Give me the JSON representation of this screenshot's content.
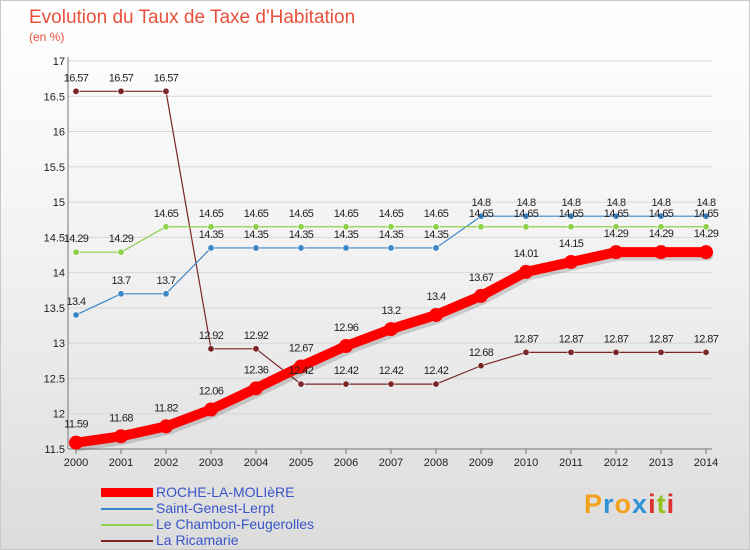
{
  "header": {
    "title": "Evolution du Taux de Taxe d'Habitation",
    "subtitle": "(en %)"
  },
  "logo": {
    "text": "Proxiti",
    "letter_colors": [
      "#f3a21d",
      "#2f93d6",
      "#f3a21d",
      "#2f93d6",
      "#d9322f",
      "#94c11f",
      "#d9322f"
    ]
  },
  "chart_data": {
    "type": "line",
    "title": "Evolution du Taux de Taxe d'Habitation",
    "subtitle": "(en %)",
    "x": [
      "2000",
      "2001",
      "2002",
      "2003",
      "2004",
      "2005",
      "2006",
      "2007",
      "2008",
      "2009",
      "2010",
      "2011",
      "2012",
      "2013",
      "2014"
    ],
    "ylim": [
      11.5,
      17
    ],
    "yticks": [
      "11.5",
      "12",
      "12.5",
      "13",
      "13.5",
      "14",
      "14.5",
      "15",
      "15.5",
      "16",
      "16.5",
      "17"
    ],
    "grid": "horizontal",
    "legend_position": "bottom-left",
    "series": [
      {
        "name": "ROCHE-LA-MOLIèRE",
        "color": "#ff0000",
        "highlight": true,
        "values": [
          11.59,
          11.68,
          11.82,
          12.06,
          12.36,
          12.67,
          12.96,
          13.2,
          13.4,
          13.67,
          14.01,
          14.15,
          14.29,
          14.29,
          14.29
        ],
        "labels": [
          "11.59",
          "11.68",
          "11.82",
          "12.06",
          "12.36",
          "12.67",
          "12.96",
          "13.2",
          "13.4",
          "13.67",
          "14.01",
          "14.15",
          "14.29",
          "14.29",
          "14.29"
        ]
      },
      {
        "name": "Saint-Genest-Lerpt",
        "color": "#3d86c6",
        "values": [
          13.4,
          13.7,
          13.7,
          14.35,
          14.35,
          14.35,
          14.35,
          14.35,
          14.35,
          14.8,
          14.8,
          14.8,
          14.8,
          14.8,
          14.8
        ],
        "labels": [
          "13.4",
          "13.7",
          "13.7",
          "14.35",
          "14.35",
          "14.35",
          "14.35",
          "14.35",
          "14.35",
          "14.8",
          "14.8",
          "14.8",
          "14.8",
          "14.8",
          "14.8"
        ]
      },
      {
        "name": "Le Chambon-Feugerolles",
        "color": "#8ed04b",
        "values": [
          14.29,
          14.29,
          14.65,
          14.65,
          14.65,
          14.65,
          14.65,
          14.65,
          14.65,
          14.65,
          14.65,
          14.65,
          14.65,
          14.65,
          14.65
        ],
        "labels": [
          "14.29",
          "14.29",
          "14.65",
          "14.65",
          "14.65",
          "14.65",
          "14.65",
          "14.65",
          "14.65",
          "14.65",
          "14.65",
          "14.65",
          "14.65",
          "14.65",
          "14.65"
        ]
      },
      {
        "name": "La Ricamarie",
        "color": "#7a2626",
        "values": [
          16.57,
          16.57,
          16.57,
          12.92,
          12.92,
          12.42,
          12.42,
          12.42,
          12.42,
          12.68,
          12.87,
          12.87,
          12.87,
          12.87,
          12.87
        ],
        "labels": [
          "16.57",
          "16.57",
          "16.57",
          "12.92",
          "12.92",
          "12.42",
          "12.42",
          "12.42",
          "12.42",
          "12.68",
          "12.87",
          "12.87",
          "12.87",
          "12.87",
          "12.87"
        ]
      }
    ]
  }
}
